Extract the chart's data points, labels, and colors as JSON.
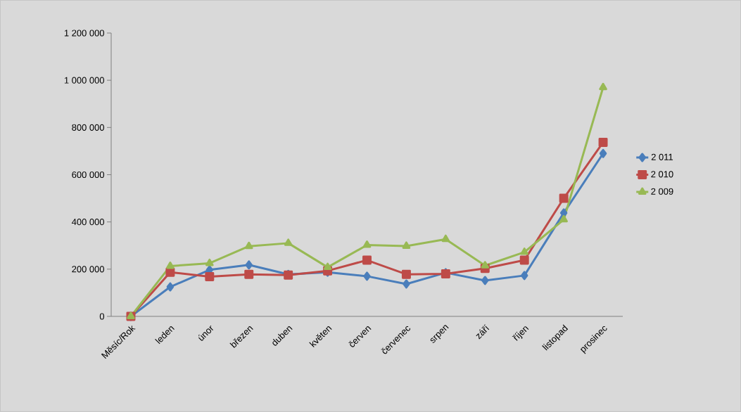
{
  "chart_data": {
    "type": "line",
    "categories": [
      "Měsíc/Rok",
      "leden",
      "únor",
      "březen",
      "duben",
      "květen",
      "červen",
      "červenec",
      "srpen",
      "září",
      "říjen",
      "listopad",
      "prosinec"
    ],
    "series": [
      {
        "name": "2 011",
        "color": "#4a7ebb",
        "marker": "diamond",
        "values": [
          0,
          125000,
          197000,
          218000,
          178000,
          187000,
          170000,
          137000,
          185000,
          152000,
          173000,
          438000,
          690000
        ]
      },
      {
        "name": "2 010",
        "color": "#be4b48",
        "marker": "square",
        "values": [
          0,
          187000,
          168000,
          178000,
          175000,
          193000,
          238000,
          178000,
          180000,
          203000,
          238000,
          500000,
          737000
        ]
      },
      {
        "name": "2 009",
        "color": "#98b954",
        "marker": "triangle",
        "values": [
          0,
          213000,
          225000,
          297000,
          310000,
          208000,
          302000,
          298000,
          327000,
          215000,
          272000,
          410000,
          970000
        ]
      }
    ],
    "ylim": [
      0,
      1200000
    ],
    "yticks": [
      0,
      {
        "value": 200000,
        "label": "200 000"
      },
      {
        "value": 400000,
        "label": "400 000"
      },
      {
        "value": 600000,
        "label": "600 000"
      },
      {
        "value": 800000,
        "label": "800 000"
      },
      {
        "value": 1000000,
        "label": "1 000 000"
      },
      {
        "value": 1200000,
        "label": "1 200 000"
      }
    ],
    "grid": false,
    "legend": "right",
    "line_style": "solid"
  }
}
